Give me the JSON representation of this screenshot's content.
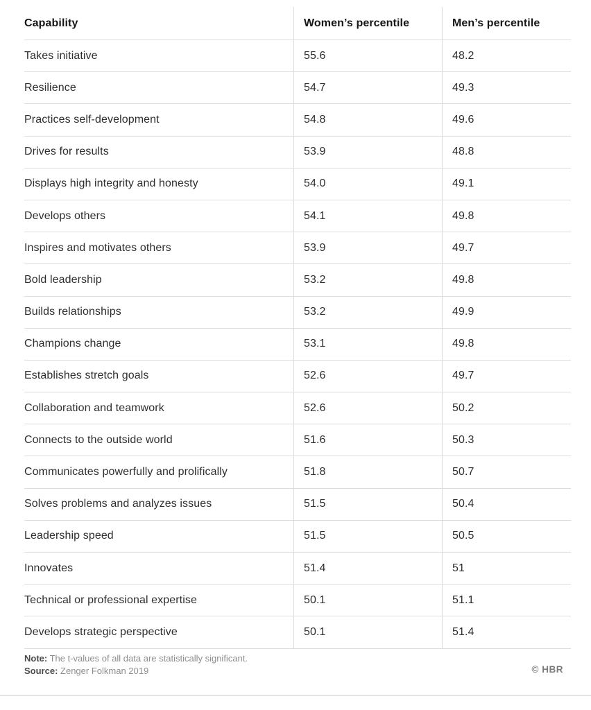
{
  "table": {
    "columns": [
      "Capability",
      "Women’s percentile",
      "Men’s percentile"
    ],
    "rows": [
      {
        "capability": "Takes initiative",
        "women": "55.6",
        "men": "48.2"
      },
      {
        "capability": "Resilience",
        "women": "54.7",
        "men": "49.3"
      },
      {
        "capability": "Practices self-development",
        "women": "54.8",
        "men": "49.6"
      },
      {
        "capability": "Drives for results",
        "women": "53.9",
        "men": "48.8"
      },
      {
        "capability": "Displays high integrity and honesty",
        "women": "54.0",
        "men": "49.1"
      },
      {
        "capability": "Develops others",
        "women": "54.1",
        "men": "49.8"
      },
      {
        "capability": "Inspires and motivates others",
        "women": "53.9",
        "men": "49.7"
      },
      {
        "capability": "Bold leadership",
        "women": "53.2",
        "men": "49.8"
      },
      {
        "capability": "Builds relationships",
        "women": "53.2",
        "men": "49.9"
      },
      {
        "capability": "Champions change",
        "women": "53.1",
        "men": "49.8"
      },
      {
        "capability": "Establishes stretch goals",
        "women": "52.6",
        "men": "49.7"
      },
      {
        "capability": "Collaboration and teamwork",
        "women": "52.6",
        "men": "50.2"
      },
      {
        "capability": "Connects to the outside world",
        "women": "51.6",
        "men": "50.3"
      },
      {
        "capability": "Communicates powerfully and prolifically",
        "women": "51.8",
        "men": "50.7"
      },
      {
        "capability": "Solves problems and analyzes issues",
        "women": "51.5",
        "men": "50.4"
      },
      {
        "capability": "Leadership speed",
        "women": "51.5",
        "men": "50.5"
      },
      {
        "capability": "Innovates",
        "women": "51.4",
        "men": "51"
      },
      {
        "capability": "Technical or professional expertise",
        "women": "50.1",
        "men": "51.1"
      },
      {
        "capability": "Develops strategic perspective",
        "women": "50.1",
        "men": "51.4"
      }
    ]
  },
  "footer": {
    "note_label": "Note:",
    "note_text": " The t-values of all data are statistically significant.",
    "source_label": "Source:",
    "source_text": " Zenger Folkman 2019",
    "credit": "© HBR"
  },
  "colors": {
    "border": "#dcdcdc",
    "text": "#2e2e2e",
    "header_text": "#161616",
    "muted": "#8e8e8e",
    "background": "#ffffff"
  },
  "chart_data": {
    "type": "table",
    "title": "",
    "categories": [
      "Takes initiative",
      "Resilience",
      "Practices self-development",
      "Drives for results",
      "Displays high integrity and honesty",
      "Develops others",
      "Inspires and motivates others",
      "Bold leadership",
      "Builds relationships",
      "Champions change",
      "Establishes stretch goals",
      "Collaboration and teamwork",
      "Connects to the outside world",
      "Communicates powerfully and prolifically",
      "Solves problems and analyzes issues",
      "Leadership speed",
      "Innovates",
      "Technical or professional expertise",
      "Develops strategic perspective"
    ],
    "series": [
      {
        "name": "Women’s percentile",
        "values": [
          55.6,
          54.7,
          54.8,
          53.9,
          54.0,
          54.1,
          53.9,
          53.2,
          53.2,
          53.1,
          52.6,
          52.6,
          51.6,
          51.8,
          51.5,
          51.5,
          51.4,
          50.1,
          50.1
        ]
      },
      {
        "name": "Men’s percentile",
        "values": [
          48.2,
          49.3,
          49.6,
          48.8,
          49.1,
          49.8,
          49.7,
          49.8,
          49.9,
          49.8,
          49.7,
          50.2,
          50.3,
          50.7,
          50.4,
          50.5,
          51,
          51.1,
          51.4
        ]
      }
    ],
    "note": "The t-values of all data are statistically significant.",
    "source": "Zenger Folkman 2019"
  }
}
